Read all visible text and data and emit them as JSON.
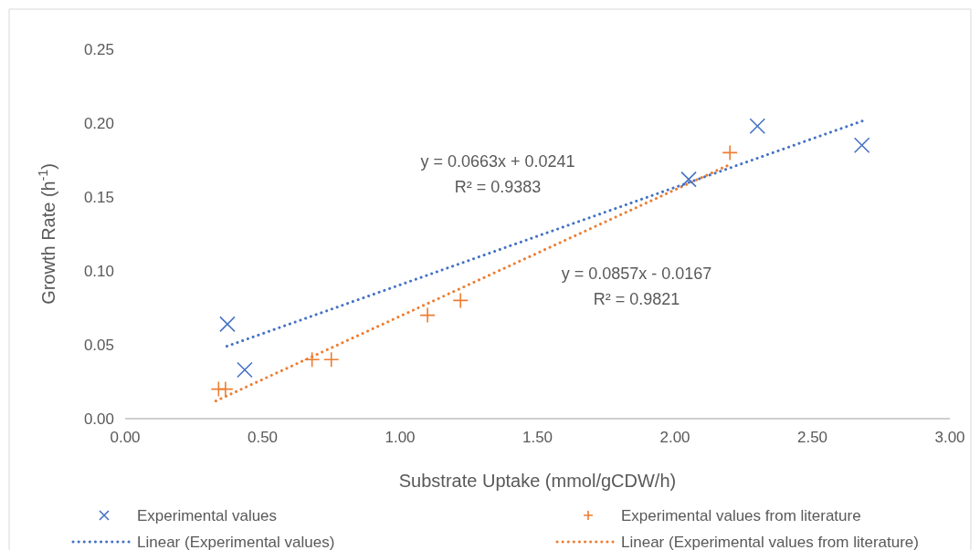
{
  "chart_data": {
    "type": "scatter",
    "xlabel": "Substrate Uptake (mmol/gCDW/h)",
    "ylabel": "Growth Rate (h$^{-1}$)",
    "xlim": [
      0,
      3
    ],
    "xticks": [
      {
        "value": 0,
        "label": "0.00"
      },
      {
        "value": 0.5,
        "label": "0.50"
      },
      {
        "value": 1,
        "label": "1.00"
      },
      {
        "value": 1.5,
        "label": "1.50"
      },
      {
        "value": 2,
        "label": "2.00"
      },
      {
        "value": 2.5,
        "label": "2.50"
      },
      {
        "value": 3,
        "label": "3.00"
      }
    ],
    "ylim": [
      0,
      0.25
    ],
    "yticks": [
      {
        "value": 0,
        "label": "0.00"
      },
      {
        "value": 0.05,
        "label": "0.05"
      },
      {
        "value": 0.1,
        "label": "0.10"
      },
      {
        "value": 0.15,
        "label": "0.15"
      },
      {
        "value": 0.2,
        "label": "0.20"
      },
      {
        "value": 0.25,
        "label": "0.25"
      }
    ],
    "grid": false,
    "legend": "bottom",
    "series": [
      {
        "name": "Experimental values",
        "marker": "x",
        "color": "#4472c4",
        "x": [
          0.372,
          0.435,
          2.05,
          2.3,
          2.68
        ],
        "values": [
          0.064,
          0.033,
          0.162,
          0.198,
          0.185
        ]
      },
      {
        "name": "Experimental values from literature",
        "marker": "cross",
        "color": "#ed7d31",
        "x": [
          0.34,
          0.365,
          0.68,
          0.75,
          1.1,
          1.22,
          2.2
        ],
        "values": [
          0.02,
          0.02,
          0.04,
          0.04,
          0.07,
          0.08,
          0.18
        ]
      },
      {
        "name": "Linear (Experimental values)",
        "type": "line",
        "line_style": "dotted",
        "color": "#4472c4",
        "x": [
          0.37,
          2.69
        ],
        "values": [
          0.049,
          0.202
        ]
      },
      {
        "name": "Linear (Experimental values from literature)",
        "type": "line",
        "line_style": "dotted",
        "color": "#ed7d31",
        "x": [
          0.33,
          2.2
        ],
        "values": [
          0.012,
          0.172
        ]
      }
    ],
    "annotations": [
      "y = 0.0663x + 0.0241\nR² = 0.9383",
      "y = 0.0857x - 0.0167\nR² = 0.9821"
    ]
  }
}
